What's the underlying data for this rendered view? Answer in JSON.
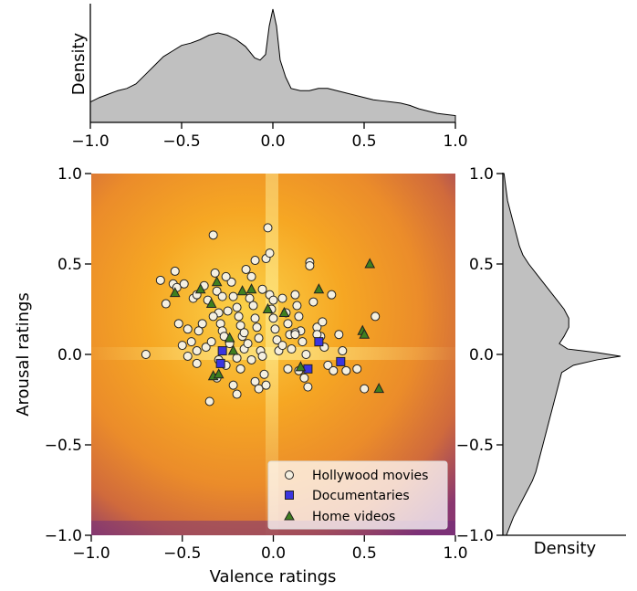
{
  "chart_data": {
    "main": {
      "type": "scatter",
      "background": "heatmap",
      "xlabel": "Valence ratings",
      "ylabel": "Arousal ratings",
      "xlim": [
        -1.0,
        1.0
      ],
      "ylim": [
        -1.0,
        1.0
      ],
      "xticks": [
        "−1.0",
        "−0.5",
        "0.0",
        "0.5",
        "1.0"
      ],
      "yticks": [
        "−1.0",
        "−0.5",
        "0.0",
        "0.5",
        "1.0"
      ],
      "legend_position": "lower-right",
      "series": [
        {
          "name": "Hollywood movies",
          "marker": "circle",
          "color": "#f5f0e1",
          "points": [
            [
              -0.7,
              0.0
            ],
            [
              -0.62,
              0.41
            ],
            [
              -0.59,
              0.28
            ],
            [
              -0.55,
              0.39
            ],
            [
              -0.54,
              0.46
            ],
            [
              -0.53,
              0.37
            ],
            [
              -0.52,
              0.17
            ],
            [
              -0.49,
              0.39
            ],
            [
              -0.47,
              0.14
            ],
            [
              -0.45,
              0.07
            ],
            [
              -0.44,
              0.31
            ],
            [
              -0.42,
              0.33
            ],
            [
              -0.41,
              0.13
            ],
            [
              -0.38,
              0.38
            ],
            [
              -0.36,
              0.3
            ],
            [
              -0.33,
              0.66
            ],
            [
              -0.32,
              0.45
            ],
            [
              -0.31,
              0.35
            ],
            [
              -0.3,
              0.23
            ],
            [
              -0.29,
              0.17
            ],
            [
              -0.28,
              0.13
            ],
            [
              -0.27,
              0.1
            ],
            [
              -0.25,
              0.24
            ],
            [
              -0.23,
              0.4
            ],
            [
              -0.22,
              0.32
            ],
            [
              -0.2,
              0.26
            ],
            [
              -0.19,
              0.21
            ],
            [
              -0.18,
              0.16
            ],
            [
              -0.17,
              0.1
            ],
            [
              -0.16,
              0.03
            ],
            [
              -0.15,
              0.47
            ],
            [
              -0.13,
              0.31
            ],
            [
              -0.11,
              0.27
            ],
            [
              -0.1,
              0.2
            ],
            [
              -0.09,
              0.15
            ],
            [
              -0.08,
              0.09
            ],
            [
              -0.07,
              0.02
            ],
            [
              -0.06,
              -0.01
            ],
            [
              -0.04,
              0.53
            ],
            [
              -0.03,
              0.7
            ],
            [
              -0.02,
              0.33
            ],
            [
              -0.01,
              0.25
            ],
            [
              0.0,
              0.2
            ],
            [
              0.01,
              0.14
            ],
            [
              0.02,
              0.08
            ],
            [
              0.03,
              0.02
            ],
            [
              0.05,
              0.31
            ],
            [
              0.07,
              0.23
            ],
            [
              0.08,
              0.17
            ],
            [
              0.09,
              0.11
            ],
            [
              0.1,
              0.03
            ],
            [
              0.12,
              0.33
            ],
            [
              0.13,
              0.27
            ],
            [
              0.14,
              0.21
            ],
            [
              0.15,
              0.13
            ],
            [
              0.16,
              0.07
            ],
            [
              0.18,
              0.0
            ],
            [
              0.2,
              0.51
            ],
            [
              0.22,
              0.29
            ],
            [
              0.24,
              0.15
            ],
            [
              0.26,
              0.1
            ],
            [
              0.28,
              0.04
            ],
            [
              0.3,
              -0.06
            ],
            [
              0.33,
              -0.09
            ],
            [
              0.36,
              0.11
            ],
            [
              0.38,
              0.02
            ],
            [
              0.4,
              -0.09
            ],
            [
              0.46,
              -0.08
            ],
            [
              0.5,
              -0.19
            ],
            [
              0.56,
              0.21
            ],
            [
              -0.35,
              -0.26
            ],
            [
              -0.31,
              -0.13
            ],
            [
              -0.26,
              -0.06
            ],
            [
              -0.22,
              -0.17
            ],
            [
              -0.2,
              -0.22
            ],
            [
              -0.12,
              -0.03
            ],
            [
              -0.1,
              -0.15
            ],
            [
              -0.08,
              -0.19
            ],
            [
              -0.05,
              -0.11
            ],
            [
              -0.04,
              -0.17
            ],
            [
              -0.26,
              0.43
            ],
            [
              -0.1,
              0.52
            ],
            [
              -0.02,
              0.56
            ],
            [
              0.2,
              0.49
            ],
            [
              -0.42,
              -0.05
            ],
            [
              -0.37,
              0.04
            ],
            [
              -0.34,
              0.07
            ],
            [
              -0.3,
              -0.03
            ],
            [
              -0.18,
              -0.08
            ],
            [
              -0.14,
              0.06
            ],
            [
              0.08,
              -0.08
            ],
            [
              0.14,
              -0.09
            ],
            [
              0.17,
              -0.13
            ],
            [
              0.19,
              -0.18
            ],
            [
              0.24,
              0.11
            ],
            [
              -0.16,
              0.12
            ],
            [
              -0.24,
              0.06
            ],
            [
              -0.42,
              0.02
            ],
            [
              -0.47,
              -0.01
            ],
            [
              -0.5,
              0.05
            ],
            [
              0.05,
              0.05
            ],
            [
              0.12,
              0.12
            ],
            [
              0.27,
              0.18
            ],
            [
              -0.06,
              0.36
            ],
            [
              -0.33,
              0.21
            ],
            [
              -0.39,
              0.17
            ],
            [
              0.32,
              0.33
            ],
            [
              -0.2,
              -0.02
            ],
            [
              0.0,
              0.3
            ],
            [
              -0.28,
              0.32
            ],
            [
              -0.12,
              0.43
            ],
            [
              0.12,
              0.11
            ]
          ]
        },
        {
          "name": "Documentaries",
          "marker": "square",
          "color": "#3b35e0",
          "points": [
            [
              -0.29,
              -0.05
            ],
            [
              -0.28,
              0.02
            ],
            [
              0.19,
              -0.08
            ],
            [
              0.25,
              0.07
            ],
            [
              0.37,
              -0.04
            ]
          ]
        },
        {
          "name": "Home videos",
          "marker": "triangle",
          "color": "#3f7f1f",
          "points": [
            [
              -0.54,
              0.34
            ],
            [
              -0.4,
              0.36
            ],
            [
              -0.34,
              0.28
            ],
            [
              -0.31,
              0.4
            ],
            [
              -0.24,
              0.09
            ],
            [
              -0.22,
              0.02
            ],
            [
              -0.17,
              0.35
            ],
            [
              -0.12,
              0.36
            ],
            [
              -0.03,
              0.25
            ],
            [
              0.06,
              0.23
            ],
            [
              0.15,
              -0.07
            ],
            [
              0.25,
              0.36
            ],
            [
              0.53,
              0.5
            ],
            [
              0.49,
              0.13
            ],
            [
              0.5,
              0.11
            ],
            [
              0.58,
              -0.19
            ],
            [
              -0.33,
              -0.12
            ],
            [
              -0.3,
              -0.11
            ]
          ]
        }
      ]
    },
    "top_marginal": {
      "type": "area",
      "ylabel": "Density",
      "xlim": [
        -1.0,
        1.0
      ],
      "xticks": [
        "−1.0",
        "−0.5",
        "0.0",
        "0.5",
        "1.0"
      ],
      "fill_color": "#c0c0c0",
      "x": [
        -1.0,
        -0.95,
        -0.9,
        -0.85,
        -0.8,
        -0.75,
        -0.7,
        -0.65,
        -0.6,
        -0.55,
        -0.5,
        -0.45,
        -0.4,
        -0.35,
        -0.3,
        -0.25,
        -0.2,
        -0.15,
        -0.1,
        -0.07,
        -0.04,
        -0.02,
        0.0,
        0.02,
        0.04,
        0.07,
        0.1,
        0.15,
        0.2,
        0.25,
        0.3,
        0.35,
        0.4,
        0.45,
        0.5,
        0.55,
        0.6,
        0.65,
        0.7,
        0.75,
        0.8,
        0.85,
        0.9,
        0.95,
        1.0
      ],
      "y": [
        0.18,
        0.22,
        0.25,
        0.28,
        0.3,
        0.34,
        0.42,
        0.5,
        0.58,
        0.63,
        0.68,
        0.7,
        0.73,
        0.77,
        0.79,
        0.77,
        0.73,
        0.67,
        0.57,
        0.55,
        0.6,
        0.85,
        1.0,
        0.85,
        0.55,
        0.4,
        0.3,
        0.28,
        0.28,
        0.3,
        0.3,
        0.28,
        0.26,
        0.24,
        0.22,
        0.2,
        0.19,
        0.18,
        0.17,
        0.15,
        0.12,
        0.1,
        0.08,
        0.07,
        0.06
      ]
    },
    "right_marginal": {
      "type": "area",
      "orientation": "horizontal",
      "xlabel": "Density",
      "ylim": [
        -1.0,
        1.0
      ],
      "yticks": [
        "−1.0",
        "−0.5",
        "0.0",
        "0.5",
        "1.0"
      ],
      "fill_color": "#c0c0c0",
      "y": [
        -1.0,
        -0.95,
        -0.9,
        -0.85,
        -0.8,
        -0.75,
        -0.7,
        -0.65,
        -0.6,
        -0.55,
        -0.5,
        -0.45,
        -0.4,
        -0.35,
        -0.3,
        -0.25,
        -0.2,
        -0.15,
        -0.1,
        -0.06,
        -0.03,
        -0.01,
        0.01,
        0.03,
        0.06,
        0.1,
        0.15,
        0.2,
        0.25,
        0.3,
        0.35,
        0.4,
        0.45,
        0.5,
        0.55,
        0.6,
        0.65,
        0.7,
        0.75,
        0.8,
        0.85,
        0.9,
        0.95,
        1.0
      ],
      "density": [
        0.03,
        0.06,
        0.09,
        0.13,
        0.17,
        0.21,
        0.25,
        0.28,
        0.3,
        0.32,
        0.34,
        0.36,
        0.38,
        0.4,
        0.42,
        0.44,
        0.46,
        0.48,
        0.5,
        0.6,
        0.8,
        1.0,
        0.8,
        0.55,
        0.48,
        0.52,
        0.56,
        0.56,
        0.52,
        0.46,
        0.4,
        0.34,
        0.28,
        0.22,
        0.17,
        0.14,
        0.12,
        0.1,
        0.08,
        0.06,
        0.04,
        0.03,
        0.02,
        0.01
      ]
    }
  }
}
